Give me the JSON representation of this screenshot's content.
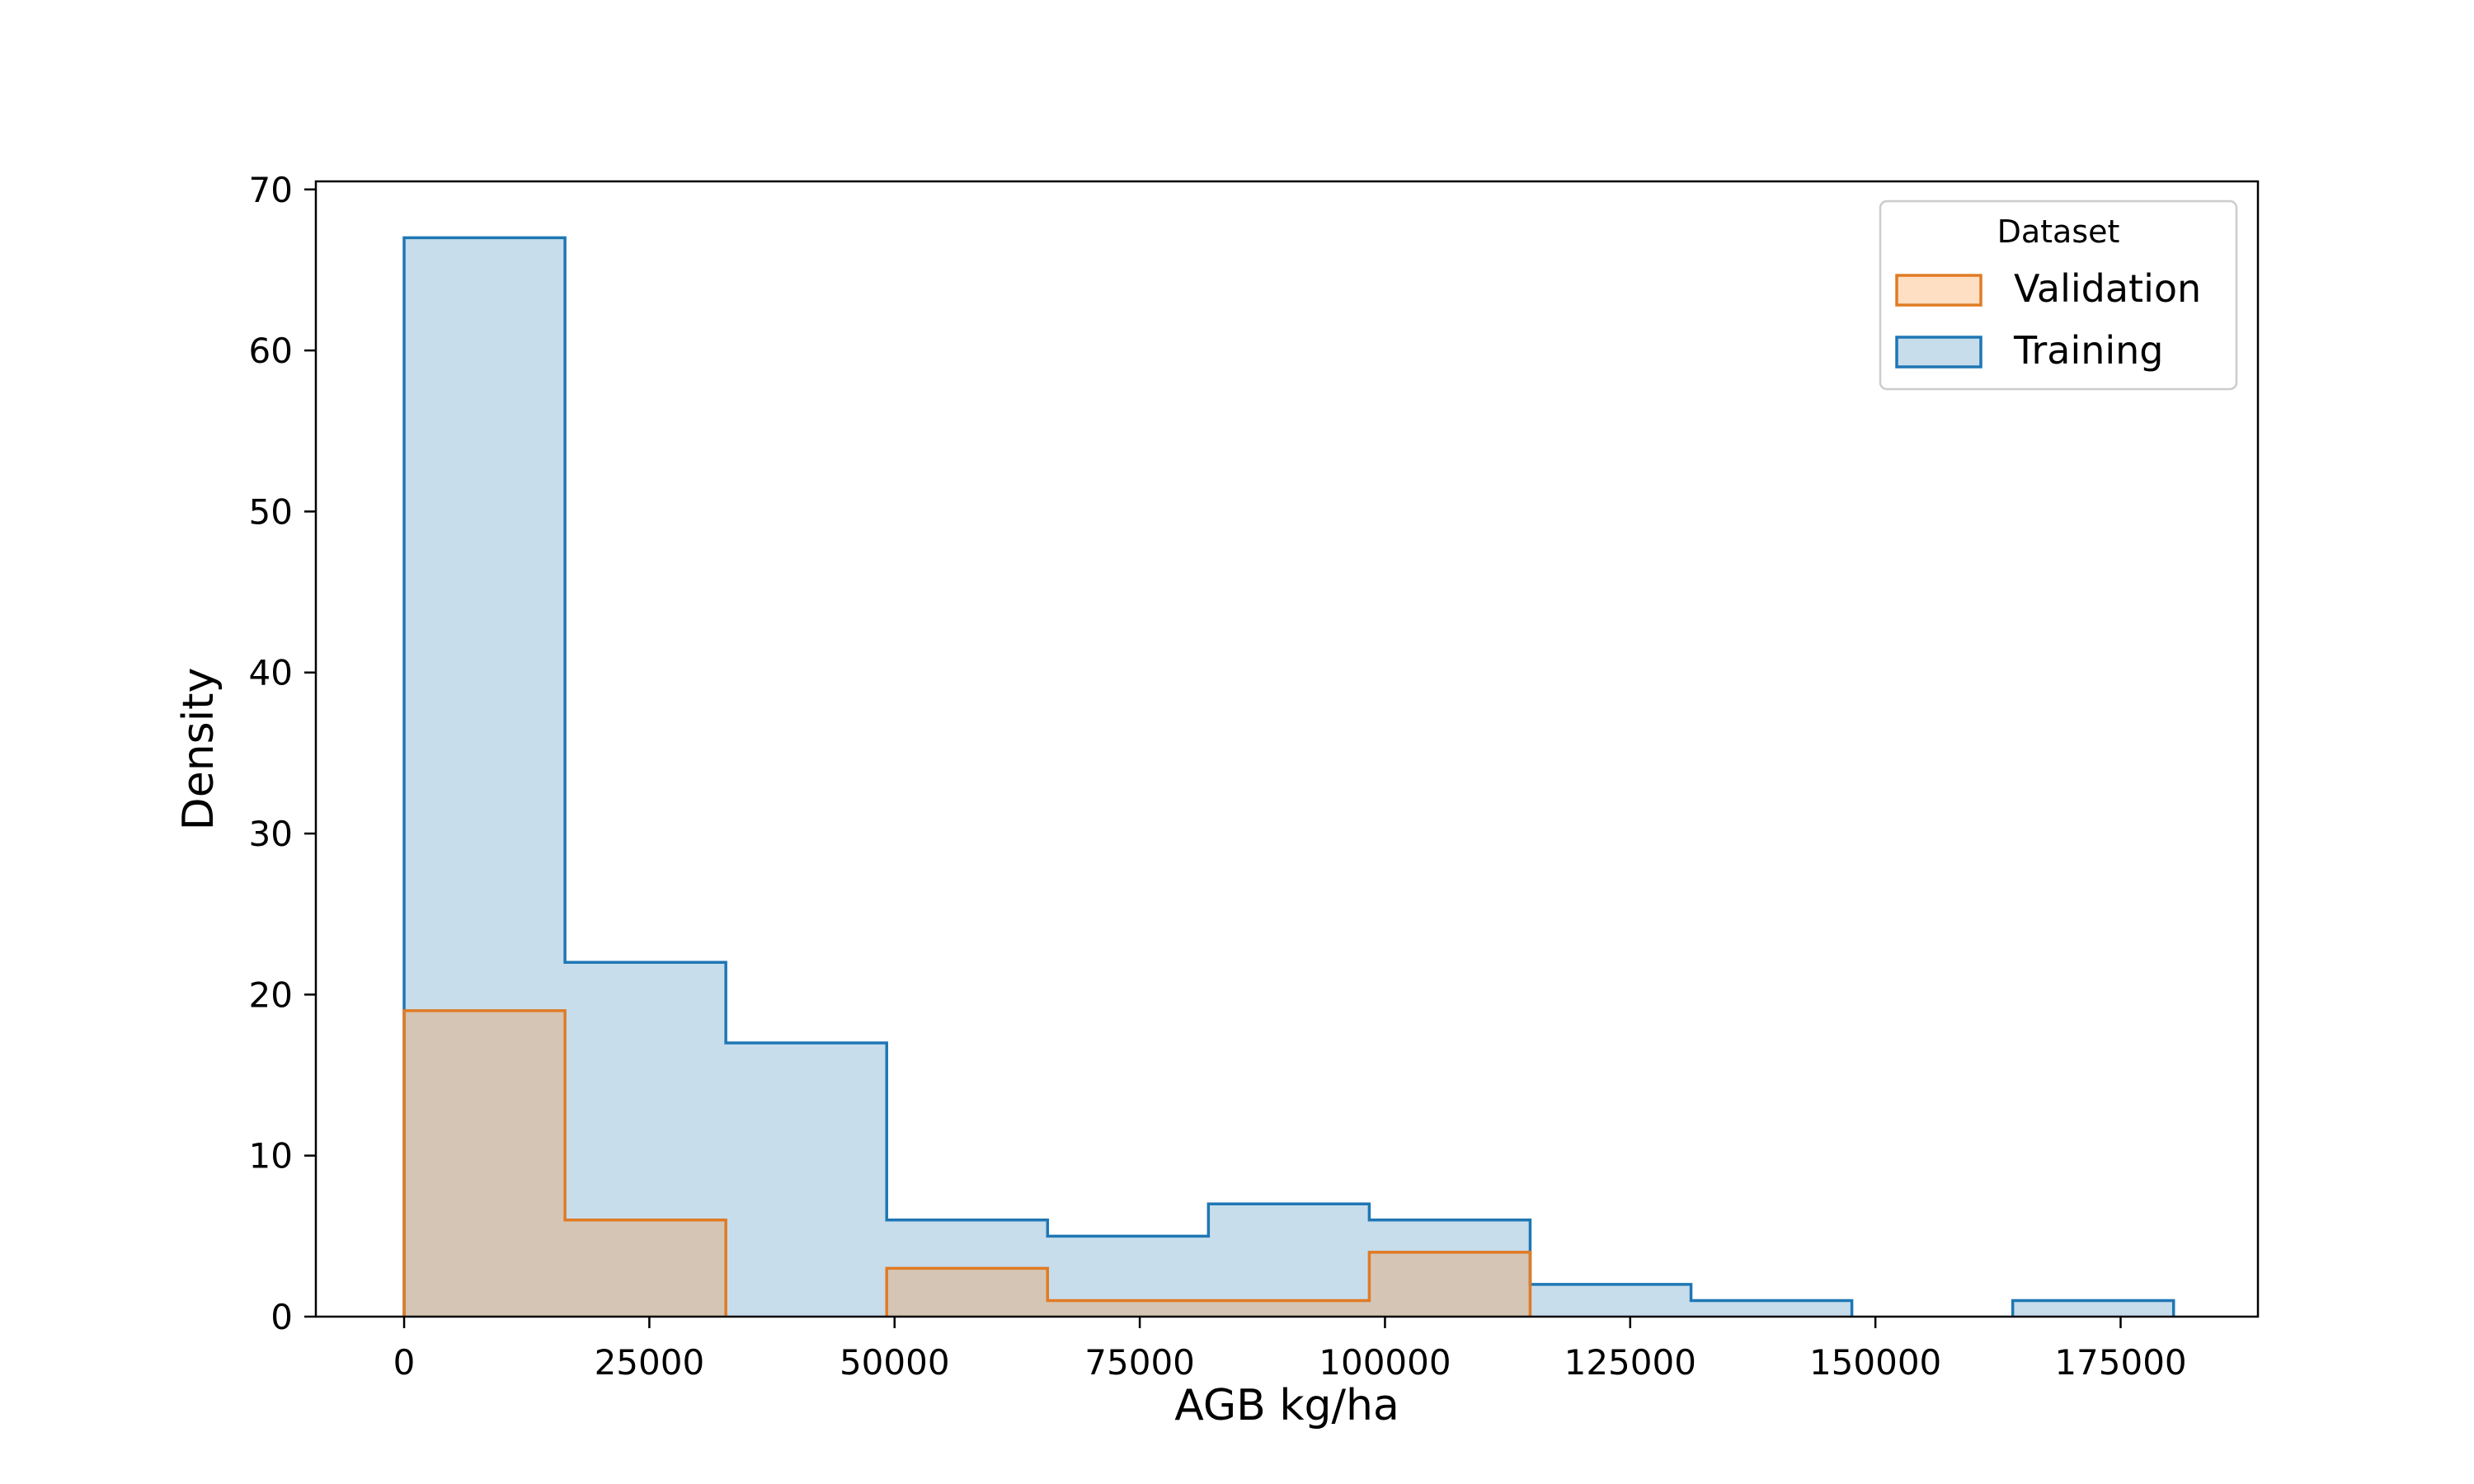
{
  "chart_data": {
    "type": "histogram",
    "title": "",
    "xlabel": "AGB kg/ha",
    "ylabel": "Density",
    "xlim": [
      -9000,
      189000
    ],
    "ylim": [
      0,
      70.5
    ],
    "x_ticks": [
      0,
      25000,
      50000,
      75000,
      100000,
      125000,
      150000,
      175000
    ],
    "x_tick_labels": [
      "0",
      "25000",
      "50000",
      "75000",
      "100000",
      "125000",
      "150000",
      "175000"
    ],
    "y_ticks": [
      0,
      10,
      20,
      30,
      40,
      50,
      60,
      70
    ],
    "y_tick_labels": [
      "0",
      "10",
      "20",
      "30",
      "40",
      "50",
      "60",
      "70"
    ],
    "bin_edges": [
      0,
      16400,
      32800,
      49200,
      65600,
      82000,
      98400,
      114800,
      131200,
      147600,
      164000,
      180400
    ],
    "series": [
      {
        "name": "Training",
        "values": [
          67,
          22,
          17,
          6,
          5,
          7,
          6,
          2,
          1,
          0,
          1
        ],
        "color": "#1f77b4",
        "fill": "#1f77b4",
        "fill_opacity": 0.25
      },
      {
        "name": "Validation",
        "values": [
          19,
          6,
          0,
          3,
          1,
          1,
          4,
          0,
          0,
          0,
          0
        ],
        "color": "#e07b24",
        "fill": "#ff7f0e",
        "fill_opacity": 0.25
      }
    ],
    "legend": {
      "title": "Dataset",
      "position": "upper right",
      "entries": [
        "Validation",
        "Training"
      ]
    },
    "grid": false
  }
}
